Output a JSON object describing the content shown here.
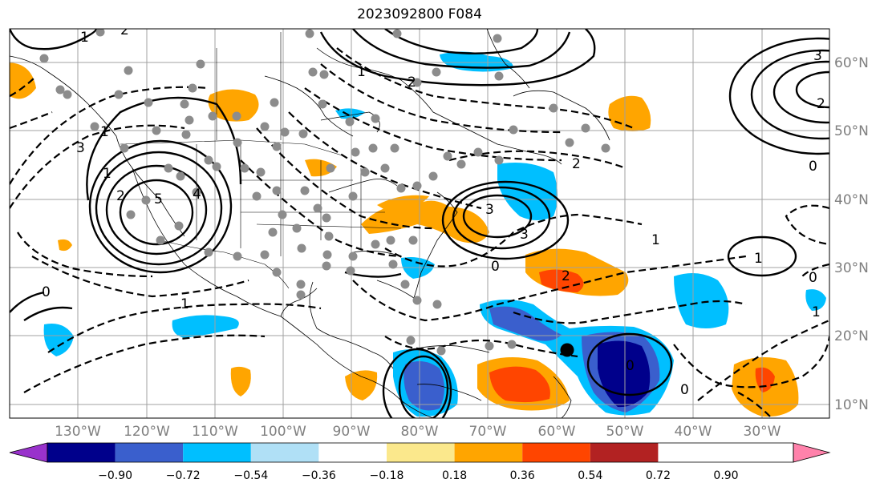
{
  "title": "2023092800 F084",
  "map": {
    "lon_ticks": [
      "130°W",
      "120°W",
      "110°W",
      "100°W",
      "90°W",
      "80°W",
      "70°W",
      "60°W",
      "50°W",
      "40°W",
      "30°W"
    ],
    "lat_ticks": [
      "60°N",
      "50°N",
      "40°N",
      "30°N",
      "20°N",
      "10°N"
    ],
    "land_color": "#ffffff",
    "grid": true,
    "marker": {
      "label": "storm-center",
      "lon": -59,
      "lat": 18
    }
  },
  "colorbar": {
    "tick_labels": [
      "−0.90",
      "−0.72",
      "−0.54",
      "−0.36",
      "−0.18",
      "0.18",
      "0.36",
      "0.54",
      "0.72",
      "0.90"
    ],
    "colors": [
      "#9932cc",
      "#00008b",
      "#3a5fcd",
      "#00bfff",
      "#b0e0f6",
      "#ffffff",
      "#fbe88c",
      "#ffa500",
      "#ff4500",
      "#b22222",
      "#ff82ab"
    ]
  },
  "contour_labels": [
    "1",
    "2",
    "3",
    "4",
    "5",
    "0",
    "1",
    "2",
    "3",
    "0",
    "1",
    "2",
    "3",
    "0",
    "2",
    "3",
    "1",
    "0",
    "1",
    "2",
    "2",
    "1",
    "0",
    "1",
    "1",
    "0"
  ]
}
